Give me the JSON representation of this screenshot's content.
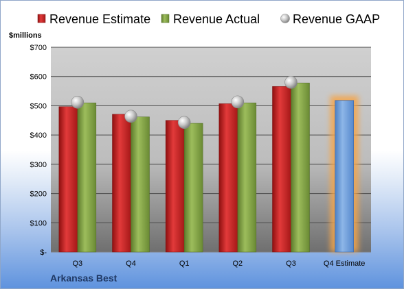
{
  "company": "Arkansas Best",
  "chart_data": {
    "type": "bar",
    "unit_label": "$millions",
    "categories": [
      "Q3",
      "Q4",
      "Q1",
      "Q2",
      "Q3",
      "Q4 Estimate"
    ],
    "series": [
      {
        "name": "Revenue Estimate",
        "color": "#d42a2a",
        "values": [
          497,
          471,
          450,
          507,
          566,
          null
        ]
      },
      {
        "name": "Revenue Actual",
        "color": "#8aac4a",
        "values": [
          510,
          462,
          440,
          510,
          578,
          null
        ]
      },
      {
        "name": "Revenue GAAP",
        "color": "#c0c0c0",
        "marker": "circle",
        "values": [
          512,
          464,
          443,
          513,
          580,
          null
        ]
      }
    ],
    "forecast": {
      "category": "Q4 Estimate",
      "value": 518,
      "color": "#7aa6dc",
      "glow": "#f5a54a"
    },
    "yticks": [
      0,
      100,
      200,
      300,
      400,
      500,
      600,
      700
    ],
    "ytick_labels": [
      "$-",
      "$100",
      "$200",
      "$300",
      "$400",
      "$500",
      "$600",
      "$700"
    ],
    "ylim": [
      0,
      700
    ],
    "grid": true,
    "legend_position": "top"
  }
}
